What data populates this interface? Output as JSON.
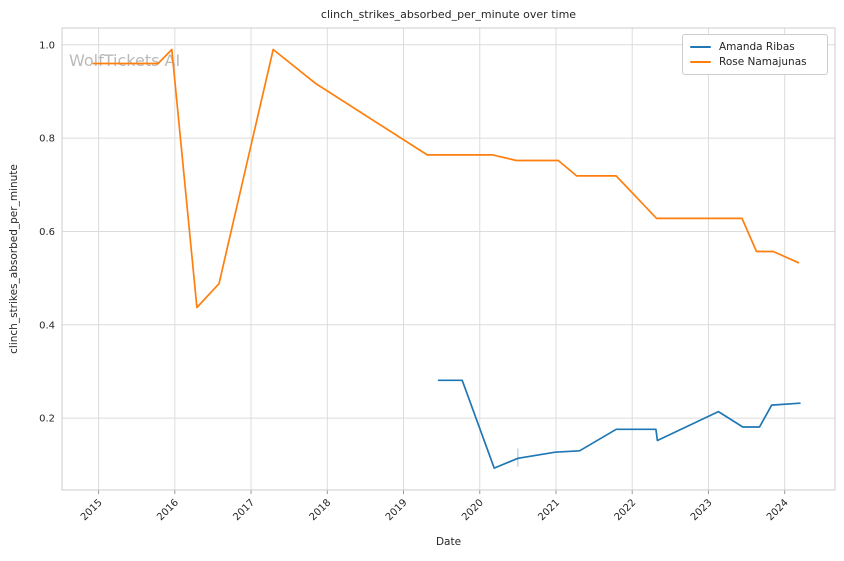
{
  "figure": {
    "title": "clinch_strikes_absorbed_per_minute over time",
    "watermark": "WolfTickets AI"
  },
  "chart_data": {
    "type": "line",
    "title": "clinch_strikes_absorbed_per_minute over time",
    "xlabel": "Date",
    "ylabel": "clinch_strikes_absorbed_per_minute",
    "x_ticks": [
      2015,
      2016,
      2017,
      2018,
      2019,
      2020,
      2021,
      2022,
      2023,
      2024
    ],
    "y_ticks": [
      0.2,
      0.4,
      0.6,
      0.8,
      1.0
    ],
    "xlim": [
      2014.52,
      2024.66
    ],
    "ylim": [
      0.046,
      1.036
    ],
    "grid": true,
    "legend_position": "upper right",
    "watermark": "WolfTickets AI",
    "watermark_color": "#b3b3b3",
    "series": [
      {
        "name": "Amanda Ribas",
        "color": "#1f77b4",
        "points": [
          [
            2019.46,
            0.281
          ],
          [
            2019.77,
            0.281
          ],
          [
            2020.19,
            0.093
          ],
          [
            2020.5,
            0.114
          ],
          [
            2020.99,
            0.127
          ],
          [
            2021.31,
            0.13
          ],
          [
            2021.79,
            0.176
          ],
          [
            2022.31,
            0.176
          ],
          [
            2022.33,
            0.152
          ],
          [
            2023.13,
            0.214
          ],
          [
            2023.45,
            0.181
          ],
          [
            2023.67,
            0.181
          ],
          [
            2023.83,
            0.228
          ],
          [
            2024.2,
            0.232
          ]
        ]
      },
      {
        "name": "Rose Namajunas",
        "color": "#ff7f0e",
        "points": [
          [
            2014.93,
            0.96
          ],
          [
            2015.78,
            0.96
          ],
          [
            2015.96,
            0.99
          ],
          [
            2016.29,
            0.437
          ],
          [
            2016.58,
            0.488
          ],
          [
            2017.29,
            0.99
          ],
          [
            2017.84,
            0.918
          ],
          [
            2019.31,
            0.764
          ],
          [
            2020.17,
            0.764
          ],
          [
            2020.48,
            0.752
          ],
          [
            2021.03,
            0.752
          ],
          [
            2021.27,
            0.719
          ],
          [
            2021.79,
            0.719
          ],
          [
            2022.32,
            0.628
          ],
          [
            2023.44,
            0.628
          ],
          [
            2023.63,
            0.557
          ],
          [
            2023.85,
            0.557
          ],
          [
            2024.18,
            0.533
          ]
        ]
      }
    ],
    "annotations": [
      {
        "type": "vertical-tick",
        "x": 2020.5,
        "y1": 0.096,
        "y2": 0.135,
        "color": "#a9cfe5"
      }
    ]
  }
}
